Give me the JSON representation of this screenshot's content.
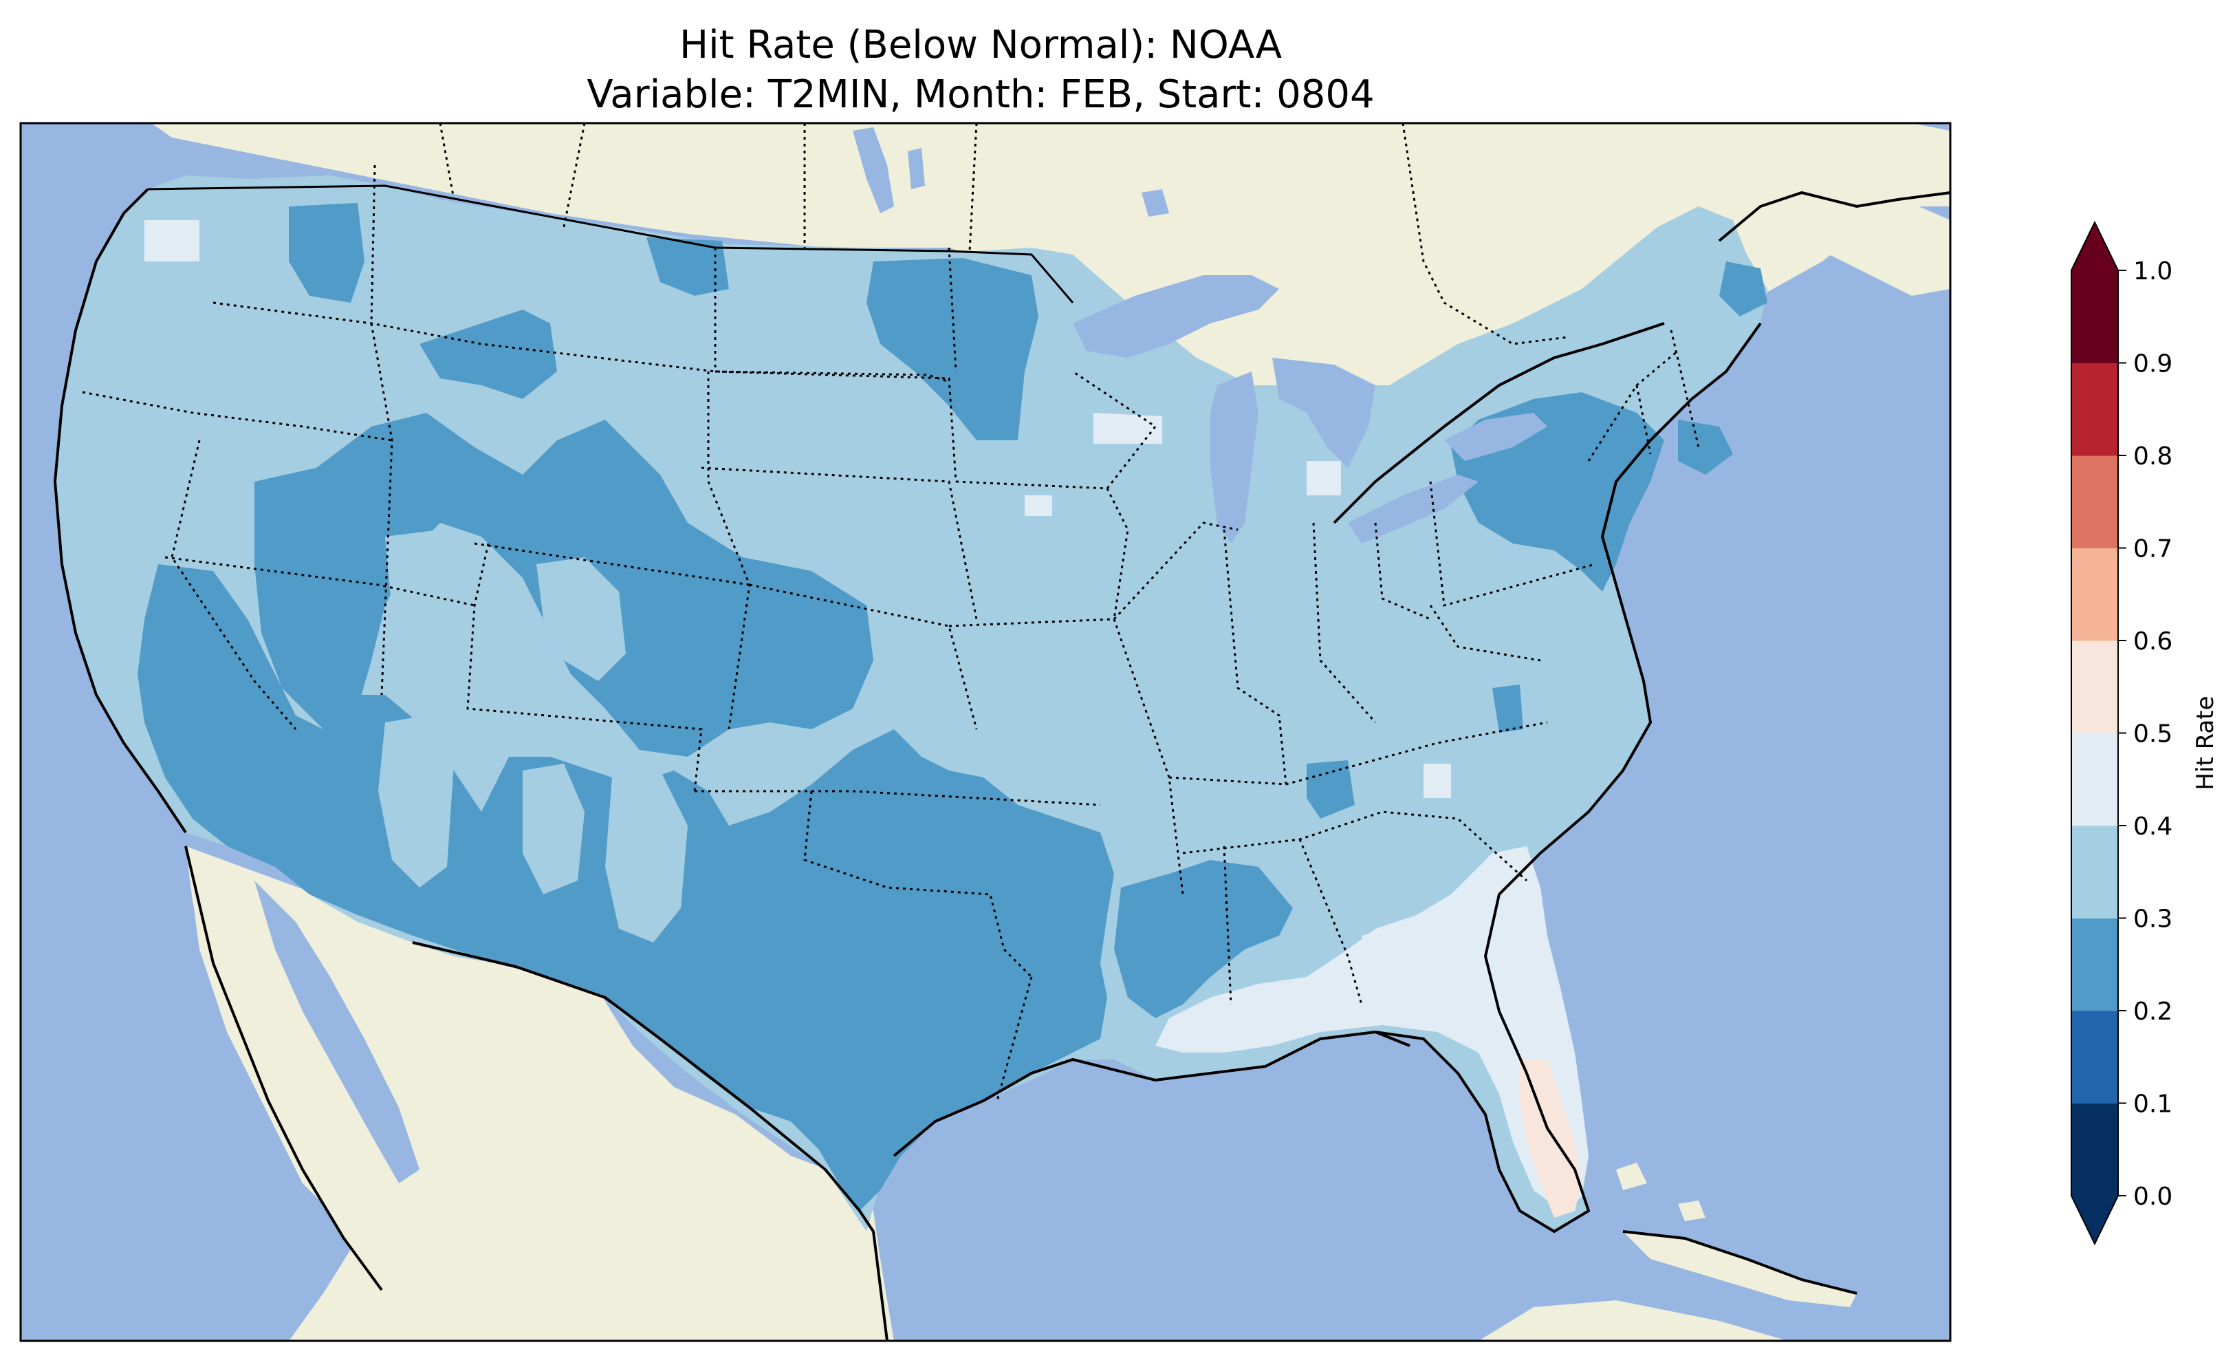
{
  "title": {
    "line1": "Hit Rate (Below Normal): NOAA",
    "line2": "Variable: T2MIN, Month: FEB, Start: 0804"
  },
  "colors": {
    "ocean": "#97b6e1",
    "land_outside": "#efefdc",
    "lakes": "#97b6e1",
    "border": "#000000"
  },
  "colorbar": {
    "label": "Hit Rate",
    "ticks": [
      "0.0",
      "0.1",
      "0.2",
      "0.3",
      "0.4",
      "0.5",
      "0.6",
      "0.7",
      "0.8",
      "0.9",
      "1.0"
    ],
    "bins": [
      {
        "range": "0.0-0.1",
        "color": "#053061"
      },
      {
        "range": "0.1-0.2",
        "color": "#2166ac"
      },
      {
        "range": "0.2-0.3",
        "color": "#519bc8"
      },
      {
        "range": "0.3-0.4",
        "color": "#a6cee3"
      },
      {
        "range": "0.4-0.5",
        "color": "#e1ecf5"
      },
      {
        "range": "0.5-0.6",
        "color": "#f8e5db"
      },
      {
        "range": "0.6-0.7",
        "color": "#f4b495"
      },
      {
        "range": "0.7-0.8",
        "color": "#de7462"
      },
      {
        "range": "0.8-0.9",
        "color": "#b7242f"
      },
      {
        "range": "0.9-1.0",
        "color": "#67001f"
      }
    ],
    "extend": "both"
  },
  "regions": [
    {
      "name": "conus-base",
      "hit_rate_bin": "0.3-0.4"
    },
    {
      "name": "southwest-texas-band",
      "hit_rate_bin": "0.2-0.3"
    },
    {
      "name": "northern-rockies",
      "hit_rate_bin": "0.2-0.3"
    },
    {
      "name": "north-dakota",
      "hit_rate_bin": "0.2-0.3"
    },
    {
      "name": "mid-atlantic",
      "hit_rate_bin": "0.2-0.3"
    },
    {
      "name": "southeast-coast",
      "hit_rate_bin": "0.4-0.5"
    },
    {
      "name": "florida-peninsula",
      "hit_rate_bin": "0.5-0.6"
    }
  ]
}
